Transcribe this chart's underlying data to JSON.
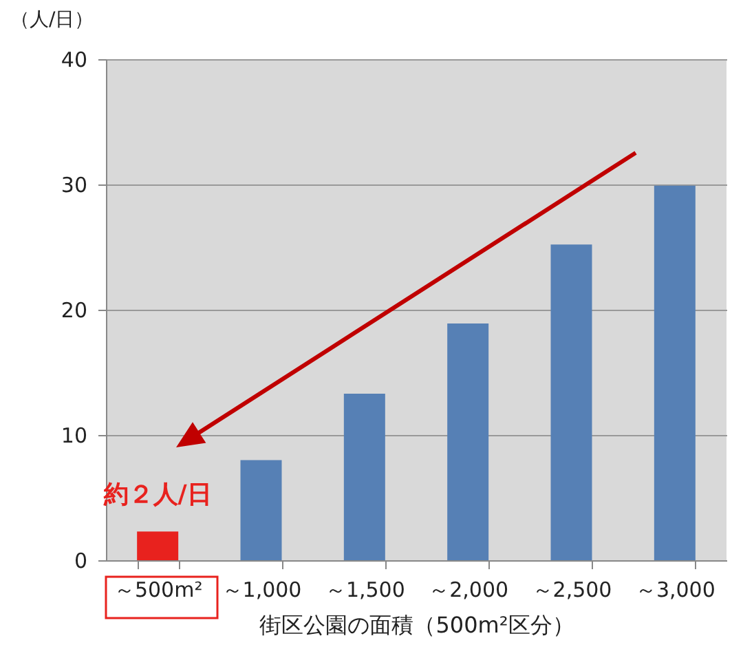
{
  "chart_data": {
    "type": "bar",
    "ylabel": "（人/日）",
    "xlabel": "街区公園の面積（500m²区分）",
    "categories": [
      "～500m²",
      "～1,000",
      "～1,500",
      "～2,000",
      "～2,500",
      "～3,000"
    ],
    "values": [
      2.3,
      8.0,
      13.3,
      18.9,
      25.2,
      29.9
    ],
    "colors": [
      "#e8221e",
      "#5680b5",
      "#5680b5",
      "#5680b5",
      "#5680b5",
      "#5680b5"
    ],
    "ylim": [
      0,
      40
    ],
    "yticks": [
      0,
      10,
      20,
      30,
      40
    ],
    "grid": "y",
    "annotations": [
      {
        "text": "約２人/日",
        "x": "～500m²",
        "y": 2.3
      }
    ]
  }
}
